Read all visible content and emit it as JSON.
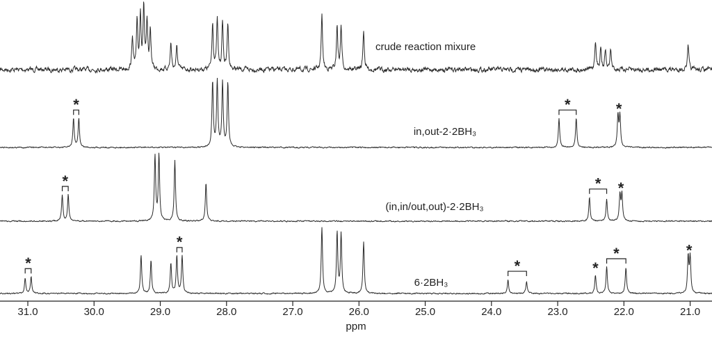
{
  "chart_data": {
    "type": "spectrum",
    "x_label": "ppm",
    "xlim": [
      31.42,
      20.67
    ],
    "xticks": [
      {
        "value": 31,
        "label": "31.0"
      },
      {
        "value": 30,
        "label": "30.0"
      },
      {
        "value": 29,
        "label": "29.0"
      },
      {
        "value": 28,
        "label": "28.0"
      },
      {
        "value": 27,
        "label": "27.0"
      },
      {
        "value": 26,
        "label": "26.0"
      },
      {
        "value": 25,
        "label": "25.0"
      },
      {
        "value": 24,
        "label": "24.0"
      },
      {
        "value": 23,
        "label": "23.0"
      },
      {
        "value": 22,
        "label": "22.0"
      },
      {
        "value": 21,
        "label": "21.0"
      }
    ],
    "series": [
      {
        "name": "crude reaction mixure",
        "color": "#2a2a2a",
        "peaks": [
          29.42,
          29.35,
          29.3,
          29.25,
          29.2,
          29.15,
          28.84,
          28.75,
          28.21,
          28.14,
          28.06,
          27.98,
          26.56,
          26.33,
          26.27,
          25.93,
          22.43,
          22.35,
          22.28,
          22.2,
          21.03
        ],
        "heights": [
          0.5,
          0.7,
          0.85,
          0.95,
          0.7,
          0.6,
          0.4,
          0.35,
          0.72,
          0.75,
          0.72,
          0.7,
          0.82,
          0.66,
          0.66,
          0.6,
          0.45,
          0.35,
          0.3,
          0.3,
          0.35
        ],
        "annotations": []
      },
      {
        "name": "in,out-2·2BH₃",
        "color": "#2a2a2a",
        "peaks": [
          30.31,
          30.23,
          28.21,
          28.14,
          28.06,
          27.98,
          22.98,
          22.72,
          22.09,
          22.06
        ],
        "heights": [
          0.44,
          0.44,
          1.0,
          1.0,
          0.98,
          0.98,
          0.44,
          0.44,
          0.48,
          0.48
        ],
        "annotations": [
          {
            "text": "*",
            "x": [
              30.31,
              30.23
            ]
          },
          {
            "text": "*",
            "x": [
              22.98,
              22.72
            ]
          },
          {
            "text": "*",
            "x": [
              22.075
            ]
          }
        ]
      },
      {
        "name": "(in,in/out,out)-2·2BH₃",
        "color": "#2a2a2a",
        "peaks": [
          30.48,
          30.39,
          29.08,
          29.02,
          28.78,
          28.31,
          22.52,
          22.26,
          22.06,
          22.03
        ],
        "heights": [
          0.4,
          0.4,
          1.0,
          1.0,
          0.92,
          0.58,
          0.36,
          0.34,
          0.4,
          0.4
        ],
        "annotations": [
          {
            "text": "*",
            "x": [
              30.48,
              30.39
            ]
          },
          {
            "text": "*",
            "x": [
              22.52,
              22.26
            ]
          },
          {
            "text": "*",
            "x": [
              22.045
            ]
          }
        ]
      },
      {
        "name": "6·2BH₃",
        "color": "#2a2a2a",
        "peaks": [
          31.04,
          30.95,
          29.29,
          29.14,
          28.84,
          28.75,
          28.67,
          26.56,
          26.33,
          26.27,
          25.93,
          23.75,
          23.47,
          22.43,
          22.26,
          21.97,
          21.03,
          21.0
        ],
        "heights": [
          0.23,
          0.25,
          0.58,
          0.5,
          0.46,
          0.57,
          0.57,
          1.0,
          0.92,
          0.9,
          0.78,
          0.21,
          0.19,
          0.28,
          0.4,
          0.4,
          0.55,
          0.55
        ],
        "annotations": [
          {
            "text": "*",
            "x": [
              31.04,
              30.95
            ]
          },
          {
            "text": "*",
            "x": [
              28.75,
              28.67
            ]
          },
          {
            "text": "*",
            "x": [
              23.75,
              23.47
            ]
          },
          {
            "text": "*",
            "x": [
              22.43
            ]
          },
          {
            "text": "*",
            "x": [
              22.26,
              21.97
            ]
          },
          {
            "text": "*",
            "x": [
              21.015
            ]
          }
        ]
      }
    ]
  }
}
